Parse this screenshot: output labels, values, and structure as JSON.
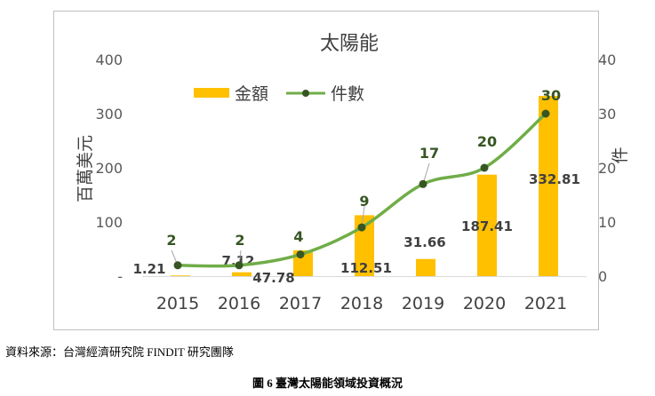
{
  "chart_data": {
    "type": "bar",
    "title": "太陽能",
    "categories": [
      "2015",
      "2016",
      "2017",
      "2018",
      "2019",
      "2020",
      "2021"
    ],
    "series": [
      {
        "name": "金額",
        "type": "bar",
        "axis": "left",
        "color": "#FFC000",
        "values": [
          1.21,
          7.12,
          47.78,
          112.51,
          31.66,
          187.41,
          332.81
        ],
        "labels": [
          "1.21",
          "7.12",
          "47.78",
          "112.51",
          "31.66",
          "187.41",
          "332.81"
        ]
      },
      {
        "name": "件數",
        "type": "line",
        "axis": "right",
        "color": "#70AD47",
        "values": [
          2,
          2,
          4,
          9,
          17,
          20,
          30
        ],
        "labels": [
          "2",
          "2",
          "4",
          "9",
          "17",
          "20",
          "30"
        ]
      }
    ],
    "ylabel_left": "百萬美元",
    "ylabel_right": "件",
    "ylim_left": [
      0,
      400
    ],
    "ylim_right": [
      0,
      40
    ],
    "yticks_left": [
      "-",
      "100",
      "200",
      "300",
      "400"
    ],
    "yticks_right": [
      "0",
      "10",
      "20",
      "30",
      "40"
    ],
    "legend_position": "top-center",
    "grid": false
  },
  "source_note": "資料來源：台灣經濟研究院 FINDIT 研究團隊",
  "figure_caption": "圖 6  臺灣太陽能領域投資概況"
}
